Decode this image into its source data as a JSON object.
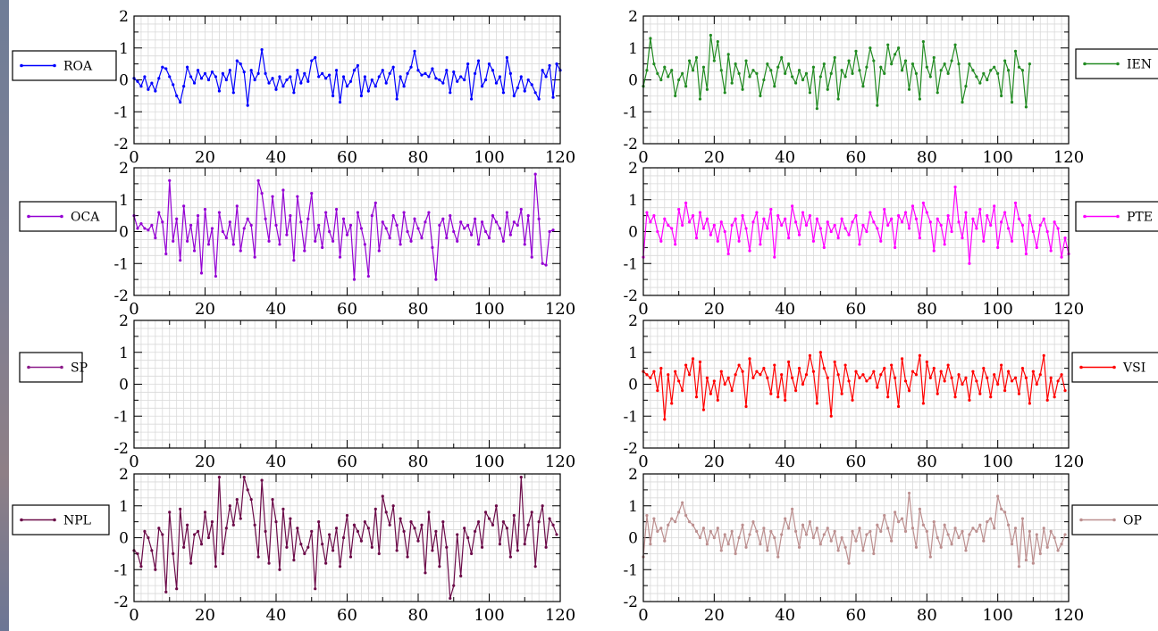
{
  "chart_data": [
    {
      "type": "line",
      "legend": "ROA",
      "color": "#0000ff",
      "xlim": [
        0,
        120
      ],
      "ylim": [
        -2,
        2
      ],
      "xticks": [
        0,
        20,
        40,
        60,
        80,
        100,
        120
      ],
      "yticks": [
        -2,
        -1,
        0,
        1,
        2
      ],
      "grid": true,
      "legend_position": "left",
      "x_start": 0,
      "x_step": 1,
      "values": [
        0.05,
        -0.05,
        -0.2,
        0.1,
        -0.3,
        -0.1,
        -0.35,
        0.05,
        0.4,
        0.35,
        0.1,
        -0.15,
        -0.5,
        -0.7,
        -0.2,
        0.4,
        0.1,
        -0.1,
        0.3,
        0.05,
        0.2,
        0.0,
        0.25,
        0.1,
        -0.35,
        0.2,
        0.0,
        0.3,
        -0.4,
        0.6,
        0.5,
        0.25,
        -0.8,
        0.3,
        0.0,
        0.2,
        0.95,
        0.2,
        -0.1,
        0.05,
        -0.3,
        0.1,
        -0.2,
        0.0,
        0.1,
        -0.4,
        0.3,
        -0.1,
        0.2,
        -0.05,
        0.6,
        0.7,
        0.1,
        0.2,
        0.05,
        0.15,
        -0.5,
        0.3,
        -0.7,
        0.1,
        -0.2,
        -0.05,
        0.3,
        0.45,
        -0.5,
        0.1,
        -0.35,
        0.0,
        -0.2,
        0.1,
        0.3,
        -0.1,
        0.2,
        0.4,
        -0.6,
        0.1,
        -0.2,
        0.2,
        0.4,
        0.9,
        0.3,
        0.15,
        0.2,
        0.1,
        0.35,
        0.05,
        0.0,
        -0.1,
        0.3,
        -0.4,
        0.25,
        -0.05,
        0.1,
        0.0,
        0.5,
        -0.6,
        0.2,
        0.6,
        -0.2,
        0.0,
        0.5,
        0.3,
        -0.1,
        0.1,
        -0.4,
        0.7,
        0.2,
        -0.5,
        -0.25,
        0.1,
        -0.35,
        0.0,
        -0.15,
        -0.4,
        -0.6,
        0.3,
        0.1,
        0.45,
        -0.55,
        0.5,
        0.3
      ]
    },
    {
      "type": "line",
      "legend": "OCA",
      "color": "#9400d3",
      "xlim": [
        0,
        120
      ],
      "ylim": [
        -2,
        2
      ],
      "xticks": [
        0,
        20,
        40,
        60,
        80,
        100,
        120
      ],
      "yticks": [
        -2,
        -1,
        0,
        1,
        2
      ],
      "grid": true,
      "legend_position": "left",
      "x_start": 0,
      "x_step": 1,
      "values": [
        0.5,
        0.1,
        0.25,
        0.1,
        0.05,
        0.2,
        -0.2,
        0.6,
        0.3,
        -0.7,
        1.6,
        -0.3,
        0.4,
        -0.9,
        0.8,
        -0.3,
        0.2,
        -0.6,
        0.5,
        -1.3,
        0.7,
        -0.4,
        0.1,
        -1.4,
        0.6,
        0.0,
        -0.2,
        0.3,
        -0.4,
        0.8,
        -0.6,
        0.1,
        0.4,
        0.2,
        -0.8,
        1.6,
        1.2,
        0.4,
        -0.3,
        1.1,
        0.2,
        -0.4,
        1.3,
        -0.1,
        0.5,
        -0.9,
        1.1,
        0.3,
        -0.6,
        0.4,
        1.2,
        -0.3,
        0.2,
        -0.5,
        0.6,
        0.0,
        -0.3,
        0.7,
        -0.8,
        0.4,
        -0.1,
        0.2,
        -1.5,
        0.6,
        0.1,
        -0.4,
        -1.4,
        0.5,
        0.9,
        -0.6,
        0.3,
        0.1,
        -0.2,
        0.5,
        0.2,
        -0.4,
        0.6,
        0.0,
        -0.3,
        0.4,
        0.1,
        -0.2,
        0.3,
        0.6,
        -0.5,
        -1.5,
        0.2,
        0.4,
        -0.2,
        0.5,
        0.0,
        -0.3,
        0.3,
        0.1,
        0.2,
        -0.1,
        0.4,
        -0.4,
        0.3,
        0.0,
        -0.2,
        0.5,
        0.3,
        0.1,
        -0.3,
        0.6,
        -0.1,
        0.3,
        0.2,
        0.7,
        -0.4,
        0.5,
        -0.8,
        1.8,
        0.4,
        -1.0,
        -1.05,
        0.0,
        0.05
      ]
    },
    {
      "type": "line",
      "legend": "SP",
      "color": "#8b1a89",
      "xlim": [
        0,
        120
      ],
      "ylim": [
        -2,
        2
      ],
      "xticks": [
        0,
        20,
        40,
        60,
        80,
        100,
        120
      ],
      "yticks": [
        -2,
        -1,
        0,
        1,
        2
      ],
      "grid": true,
      "legend_position": "left",
      "x_start": 0,
      "x_step": 1,
      "values": []
    },
    {
      "type": "line",
      "legend": "NPL",
      "color": "#6b0a48",
      "xlim": [
        0,
        120
      ],
      "ylim": [
        -2,
        2
      ],
      "xticks": [
        0,
        20,
        40,
        60,
        80,
        100,
        120
      ],
      "yticks": [
        -2,
        -1,
        0,
        1,
        2
      ],
      "grid": true,
      "legend_position": "left",
      "x_start": 0,
      "x_step": 1,
      "values": [
        -0.4,
        -0.5,
        -0.9,
        0.2,
        0.0,
        -0.4,
        -1.0,
        0.3,
        0.1,
        -1.7,
        0.8,
        -0.5,
        -1.6,
        0.9,
        -0.3,
        0.4,
        -0.8,
        0.1,
        0.2,
        -0.2,
        0.8,
        0.0,
        0.5,
        -0.9,
        1.9,
        -0.5,
        0.3,
        1.0,
        0.4,
        1.2,
        0.6,
        1.9,
        1.5,
        1.2,
        0.4,
        -0.6,
        1.8,
        0.2,
        -0.8,
        1.2,
        0.5,
        -1.0,
        0.9,
        -0.3,
        0.6,
        -0.7,
        0.3,
        -0.2,
        -0.5,
        -0.3,
        0.2,
        -1.6,
        0.5,
        -0.2,
        -0.8,
        0.1,
        -0.4,
        0.3,
        -0.9,
        0.0,
        0.7,
        -0.6,
        0.4,
        0.2,
        -0.1,
        0.5,
        0.3,
        -0.3,
        0.9,
        -0.5,
        1.3,
        0.8,
        0.4,
        1.0,
        -0.4,
        0.6,
        0.2,
        -0.6,
        0.5,
        0.3,
        -0.1,
        0.4,
        -1.1,
        0.8,
        -0.4,
        0.2,
        -0.9,
        0.5,
        -0.3,
        -1.9,
        -1.5,
        0.1,
        -1.2,
        0.3,
        0.0,
        -0.5,
        0.2,
        0.5,
        -0.3,
        0.8,
        0.6,
        0.4,
        1.0,
        -0.2,
        0.5,
        0.3,
        -0.6,
        0.7,
        -0.4,
        1.9,
        -0.2,
        0.4,
        0.8,
        -0.9,
        0.5,
        1.0,
        -0.3,
        0.6,
        0.4,
        0.1
      ]
    },
    {
      "type": "line",
      "legend": "IEN",
      "color": "#228b22",
      "xlim": [
        0,
        120
      ],
      "ylim": [
        -2,
        2
      ],
      "xticks": [
        0,
        20,
        40,
        60,
        80,
        100,
        120
      ],
      "yticks": [
        -2,
        -1,
        0,
        1,
        2
      ],
      "grid": true,
      "legend_position": "right",
      "x_start": 0,
      "x_step": 1,
      "values": [
        -0.2,
        0.3,
        1.3,
        0.5,
        0.2,
        0.0,
        0.4,
        0.1,
        0.3,
        -0.5,
        0.0,
        0.2,
        -0.2,
        0.6,
        0.3,
        0.7,
        -0.6,
        0.4,
        -0.3,
        1.4,
        0.6,
        1.2,
        0.3,
        -0.4,
        0.8,
        -0.1,
        0.5,
        0.2,
        -0.3,
        0.6,
        0.1,
        0.3,
        0.2,
        -0.5,
        0.0,
        0.5,
        0.3,
        -0.2,
        0.4,
        0.7,
        0.2,
        0.5,
        0.1,
        -0.1,
        0.3,
        0.0,
        0.2,
        -0.4,
        0.4,
        -0.9,
        0.1,
        0.5,
        -0.3,
        0.2,
        0.7,
        -0.6,
        0.3,
        0.1,
        0.6,
        0.2,
        0.9,
        0.3,
        -0.2,
        0.4,
        1.0,
        0.6,
        -0.8,
        0.4,
        0.2,
        1.1,
        0.5,
        0.8,
        1.0,
        0.3,
        0.6,
        -0.3,
        0.5,
        0.2,
        -0.6,
        1.2,
        0.4,
        0.1,
        0.7,
        -0.4,
        0.3,
        0.5,
        0.2,
        0.6,
        1.1,
        0.5,
        -0.7,
        -0.2,
        0.5,
        0.3,
        0.1,
        -0.1,
        0.2,
        0.0,
        0.3,
        0.4,
        0.2,
        -0.5,
        0.6,
        0.3,
        -0.7,
        0.9,
        0.4,
        0.3,
        -0.85,
        0.5
      ]
    },
    {
      "type": "line",
      "legend": "PTE",
      "color": "#ff00ff",
      "xlim": [
        0,
        120
      ],
      "ylim": [
        -2,
        2
      ],
      "xticks": [
        0,
        20,
        40,
        60,
        80,
        100,
        120
      ],
      "yticks": [
        -2,
        -1,
        0,
        1,
        2
      ],
      "grid": true,
      "legend_position": "right",
      "x_start": 0,
      "x_step": 1,
      "values": [
        -0.8,
        0.6,
        0.3,
        0.5,
        0.0,
        -0.3,
        0.4,
        0.2,
        0.1,
        -0.4,
        0.7,
        0.2,
        0.9,
        0.3,
        0.5,
        -0.2,
        0.6,
        0.1,
        0.4,
        -0.1,
        0.2,
        -0.3,
        0.3,
        0.0,
        -0.7,
        0.2,
        0.4,
        -0.3,
        0.5,
        0.1,
        -0.6,
        0.3,
        0.6,
        -0.4,
        0.4,
        0.1,
        0.7,
        -0.8,
        0.5,
        0.2,
        0.4,
        -0.2,
        0.8,
        0.3,
        -0.1,
        0.6,
        0.2,
        0.5,
        -0.3,
        0.4,
        0.1,
        -0.5,
        0.3,
        0.0,
        0.2,
        -0.2,
        0.4,
        0.1,
        -0.1,
        0.3,
        0.5,
        -0.4,
        0.2,
        0.0,
        0.6,
        0.3,
        0.1,
        -0.3,
        0.7,
        0.2,
        0.4,
        -0.5,
        0.5,
        0.3,
        0.6,
        0.1,
        0.8,
        0.4,
        -0.2,
        0.9,
        0.6,
        0.3,
        -0.6,
        0.4,
        0.2,
        -0.4,
        0.5,
        0.0,
        1.4,
        0.3,
        -0.2,
        0.6,
        -1.0,
        0.4,
        0.1,
        0.7,
        -0.3,
        0.5,
        0.2,
        0.8,
        -0.5,
        0.3,
        0.6,
        0.1,
        -0.3,
        0.9,
        0.4,
        0.2,
        -0.7,
        0.5,
        0.0,
        -0.5,
        0.2,
        0.4,
        0.0,
        -0.6,
        0.3,
        0.1,
        -0.8,
        -0.2,
        -0.7
      ]
    },
    {
      "type": "line",
      "legend": "VSI",
      "color": "#ff0000",
      "xlim": [
        0,
        120
      ],
      "ylim": [
        -2,
        2
      ],
      "xticks": [
        0,
        20,
        40,
        60,
        80,
        100,
        120
      ],
      "yticks": [
        -2,
        -1,
        0,
        1,
        2
      ],
      "grid": true,
      "legend_position": "right",
      "x_start": 0,
      "x_step": 1,
      "values": [
        0.4,
        0.3,
        0.2,
        0.4,
        -0.2,
        0.5,
        -1.1,
        0.3,
        -0.6,
        0.4,
        0.1,
        -0.2,
        0.6,
        0.3,
        0.8,
        -0.4,
        0.7,
        -0.8,
        0.2,
        -0.3,
        0.1,
        -0.5,
        0.4,
        0.0,
        0.2,
        -0.2,
        0.3,
        0.6,
        0.4,
        -0.7,
        0.8,
        0.2,
        0.4,
        0.3,
        0.5,
        0.2,
        -0.3,
        0.6,
        -0.4,
        0.3,
        -0.5,
        0.7,
        0.2,
        -0.2,
        0.5,
        0.0,
        0.3,
        0.9,
        0.4,
        -0.6,
        1.0,
        0.5,
        0.2,
        -1.0,
        0.7,
        0.3,
        -0.3,
        0.6,
        0.1,
        -0.5,
        0.4,
        0.2,
        0.3,
        0.1,
        0.2,
        0.4,
        -0.1,
        0.3,
        0.5,
        -0.4,
        0.6,
        0.2,
        -0.7,
        0.8,
        0.1,
        -0.2,
        0.4,
        0.3,
        0.9,
        -0.6,
        0.7,
        0.2,
        0.5,
        -0.3,
        0.4,
        0.1,
        0.6,
        0.2,
        -0.4,
        0.3,
        0.0,
        0.2,
        -0.5,
        0.4,
        0.1,
        -0.3,
        0.5,
        0.2,
        -0.4,
        0.3,
        0.0,
        0.6,
        -0.2,
        0.4,
        0.1,
        0.2,
        -0.3,
        0.5,
        0.2,
        -0.6,
        0.4,
        0.0,
        0.3,
        0.9,
        -0.5,
        0.2,
        -0.4,
        0.1,
        0.3,
        -0.2
      ]
    },
    {
      "type": "line",
      "legend": "OP",
      "color": "#bc8f8f",
      "xlim": [
        0,
        120
      ],
      "ylim": [
        -2,
        2
      ],
      "xticks": [
        0,
        20,
        40,
        60,
        80,
        100,
        120
      ],
      "yticks": [
        -2,
        -1,
        0,
        1,
        2
      ],
      "grid": true,
      "legend_position": "right",
      "x_start": 0,
      "x_step": 1,
      "values": [
        -0.6,
        0.7,
        -0.2,
        0.6,
        0.2,
        0.3,
        -0.1,
        0.4,
        0.6,
        0.5,
        0.8,
        1.1,
        0.7,
        0.5,
        0.4,
        0.2,
        0.0,
        0.3,
        -0.2,
        0.2,
        0.0,
        0.3,
        -0.4,
        0.1,
        -0.2,
        0.2,
        -0.5,
        0.0,
        0.4,
        -0.3,
        0.1,
        0.5,
        0.2,
        -0.2,
        0.3,
        -0.4,
        0.2,
        0.0,
        -0.6,
        0.1,
        0.6,
        0.3,
        0.9,
        0.2,
        -0.3,
        0.4,
        0.1,
        0.5,
        0.0,
        0.3,
        -0.2,
        0.1,
        0.3,
        -0.1,
        0.2,
        -0.4,
        0.0,
        -0.3,
        -0.8,
        0.2,
        -0.1,
        0.3,
        -0.4,
        0.1,
        0.2,
        -0.5,
        0.4,
        0.2,
        0.7,
        0.3,
        -0.1,
        0.8,
        0.5,
        0.6,
        0.2,
        1.4,
        0.3,
        -0.3,
        0.9,
        0.4,
        0.2,
        -0.6,
        0.5,
        0.0,
        -0.3,
        0.4,
        0.1,
        -0.2,
        0.3,
        0.0,
        0.2,
        -0.4,
        0.1,
        0.3,
        0.2,
        0.4,
        -0.1,
        0.5,
        0.6,
        0.3,
        1.3,
        0.9,
        0.8,
        0.4,
        -0.2,
        0.3,
        -0.9,
        0.6,
        -0.7,
        0.2,
        -0.8,
        0.1,
        -0.5,
        0.3,
        -0.3,
        0.2,
        0.0,
        -0.4,
        -0.2,
        0.1
      ]
    }
  ]
}
